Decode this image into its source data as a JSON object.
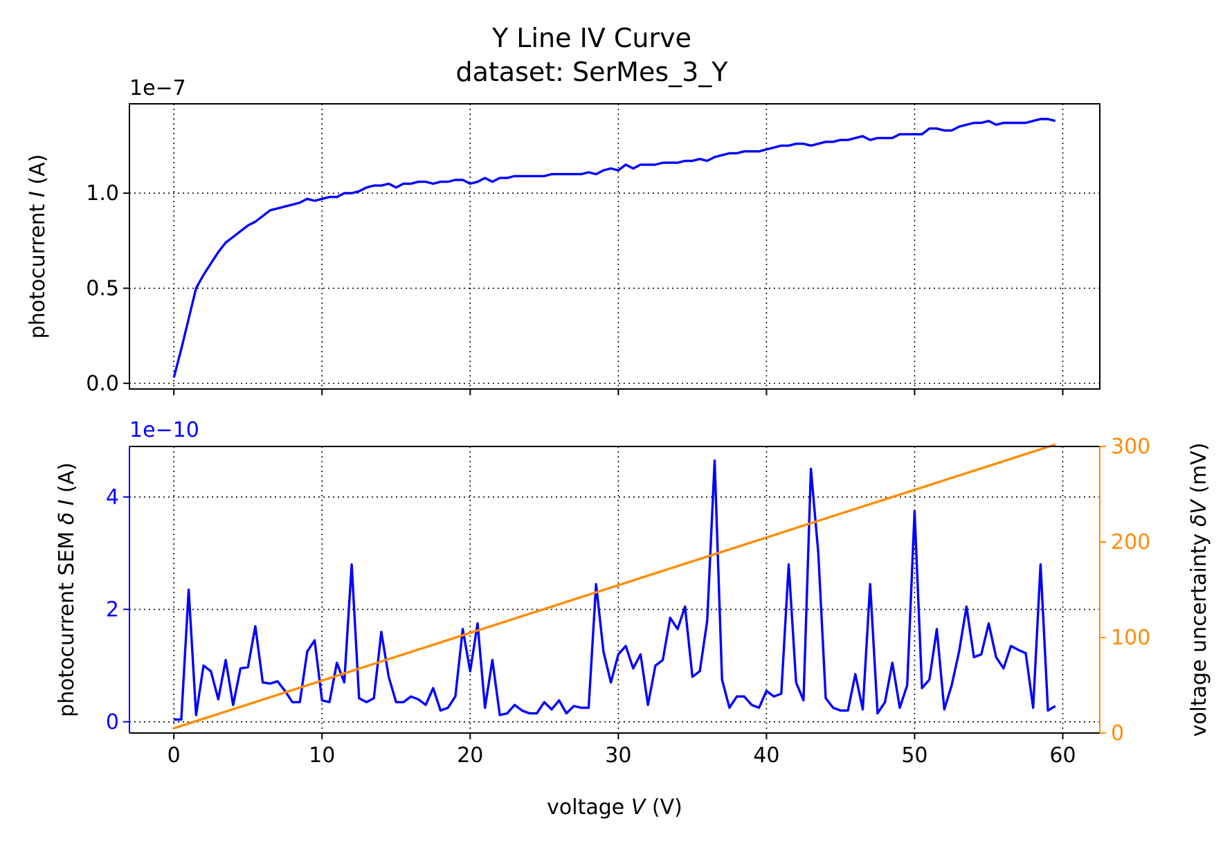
{
  "chart_data": {
    "type": "line",
    "title": "Y Line IV Curve",
    "subtitle": "dataset: SerMes_3_Y",
    "colors": {
      "current": "#0000ff",
      "sem": "#0000ff",
      "voltage_uncertainty": "#ff8c00",
      "grid": "#000000"
    },
    "grid": true,
    "xlabel": "voltage V (V)",
    "x_ticks": [
      "0",
      "10",
      "20",
      "30",
      "40",
      "50",
      "60"
    ],
    "xlim": [
      -3,
      62.5
    ],
    "subplots": [
      {
        "ylabel": "photocurrent I (A)",
        "offset_text": "1e−7",
        "y_ticks": [
          "0.0",
          "0.5",
          "1.0"
        ],
        "ylim": [
          -0.03,
          1.47
        ],
        "series": [
          {
            "x": [
              0,
              0.5,
              1,
              1.5,
              2,
              2.5,
              3,
              3.5,
              4,
              4.5,
              5,
              5.5,
              6,
              6.5,
              7,
              7.5,
              8,
              8.5,
              9,
              9.5,
              10,
              10.5,
              11,
              11.5,
              12,
              12.5,
              13,
              13.5,
              14,
              14.5,
              15,
              15.5,
              16,
              16.5,
              17,
              17.5,
              18,
              18.5,
              19,
              19.5,
              20,
              20.5,
              21,
              21.5,
              22,
              22.5,
              23,
              23.5,
              24,
              24.5,
              25,
              25.5,
              26,
              26.5,
              27,
              27.5,
              28,
              28.5,
              29,
              29.5,
              30,
              30.5,
              31,
              31.5,
              32,
              32.5,
              33,
              33.5,
              34,
              34.5,
              35,
              35.5,
              36,
              36.5,
              37,
              37.5,
              38,
              38.5,
              39,
              39.5,
              40,
              40.5,
              41,
              41.5,
              42,
              42.5,
              43,
              43.5,
              44,
              44.5,
              45,
              45.5,
              46,
              46.5,
              47,
              47.5,
              48,
              48.5,
              49,
              49.5,
              50,
              50.5,
              51,
              51.5,
              52,
              52.5,
              53,
              53.5,
              54,
              54.5,
              55,
              55.5,
              56,
              56.5,
              57,
              57.5,
              58,
              58.5,
              59,
              59.5
            ],
            "values": [
              0.03,
              0.18,
              0.34,
              0.5,
              0.57,
              0.63,
              0.69,
              0.74,
              0.77,
              0.8,
              0.83,
              0.85,
              0.88,
              0.91,
              0.92,
              0.93,
              0.94,
              0.95,
              0.97,
              0.96,
              0.97,
              0.98,
              0.98,
              1.0,
              1.0,
              1.01,
              1.03,
              1.04,
              1.04,
              1.05,
              1.03,
              1.05,
              1.05,
              1.06,
              1.06,
              1.05,
              1.06,
              1.06,
              1.07,
              1.07,
              1.05,
              1.06,
              1.08,
              1.06,
              1.08,
              1.08,
              1.09,
              1.09,
              1.09,
              1.09,
              1.09,
              1.1,
              1.1,
              1.1,
              1.1,
              1.1,
              1.11,
              1.1,
              1.12,
              1.13,
              1.12,
              1.15,
              1.13,
              1.15,
              1.15,
              1.15,
              1.16,
              1.16,
              1.16,
              1.17,
              1.17,
              1.18,
              1.17,
              1.19,
              1.2,
              1.21,
              1.21,
              1.22,
              1.22,
              1.22,
              1.23,
              1.24,
              1.25,
              1.25,
              1.26,
              1.26,
              1.25,
              1.26,
              1.27,
              1.27,
              1.28,
              1.28,
              1.29,
              1.3,
              1.28,
              1.29,
              1.29,
              1.29,
              1.31,
              1.31,
              1.31,
              1.31,
              1.34,
              1.34,
              1.33,
              1.33,
              1.35,
              1.36,
              1.37,
              1.37,
              1.38,
              1.36,
              1.37,
              1.37,
              1.37,
              1.37,
              1.38,
              1.39,
              1.39,
              1.38
            ]
          }
        ]
      },
      {
        "ylabel": "photocurrent SEM δ I (A)",
        "offset_text": "1e−10",
        "y_ticks": [
          "0",
          "2",
          "4"
        ],
        "ylim": [
          -0.2,
          4.9
        ],
        "y2label": "voltage uncertainty δV (mV)",
        "y2_ticks": [
          "0",
          "100",
          "200",
          "300"
        ],
        "y2lim": [
          0,
          300
        ],
        "series": [
          {
            "axis": "left",
            "x": [
              0,
              0.5,
              1,
              1.5,
              2,
              2.5,
              3,
              3.5,
              4,
              4.5,
              5,
              5.5,
              6,
              6.5,
              7,
              7.5,
              8,
              8.5,
              9,
              9.5,
              10,
              10.5,
              11,
              11.5,
              12,
              12.5,
              13,
              13.5,
              14,
              14.5,
              15,
              15.5,
              16,
              16.5,
              17,
              17.5,
              18,
              18.5,
              19,
              19.5,
              20,
              20.5,
              21,
              21.5,
              22,
              22.5,
              23,
              23.5,
              24,
              24.5,
              25,
              25.5,
              26,
              26.5,
              27,
              27.5,
              28,
              28.5,
              29,
              29.5,
              30,
              30.5,
              31,
              31.5,
              32,
              32.5,
              33,
              33.5,
              34,
              34.5,
              35,
              35.5,
              36,
              36.5,
              37,
              37.5,
              38,
              38.5,
              39,
              39.5,
              40,
              40.5,
              41,
              41.5,
              42,
              42.5,
              43,
              43.5,
              44,
              44.5,
              45,
              45.5,
              46,
              46.5,
              47,
              47.5,
              48,
              48.5,
              49,
              49.5,
              50,
              50.5,
              51,
              51.5,
              52,
              52.5,
              53,
              53.5,
              54,
              54.5,
              55,
              55.5,
              56,
              56.5,
              57,
              57.5,
              58,
              58.5,
              59,
              59.5
            ],
            "values": [
              0.04,
              0.04,
              2.35,
              0.12,
              1.0,
              0.9,
              0.4,
              1.1,
              0.3,
              0.95,
              0.97,
              1.7,
              0.7,
              0.68,
              0.72,
              0.55,
              0.35,
              0.35,
              1.25,
              1.45,
              0.38,
              0.35,
              1.05,
              0.7,
              2.8,
              0.42,
              0.35,
              0.42,
              1.6,
              0.8,
              0.35,
              0.35,
              0.45,
              0.4,
              0.3,
              0.6,
              0.2,
              0.25,
              0.45,
              1.65,
              0.9,
              1.75,
              0.25,
              1.1,
              0.12,
              0.15,
              0.3,
              0.2,
              0.15,
              0.15,
              0.35,
              0.22,
              0.38,
              0.15,
              0.28,
              0.25,
              0.25,
              2.45,
              1.25,
              0.7,
              1.2,
              1.35,
              0.95,
              1.2,
              0.3,
              1.0,
              1.1,
              1.85,
              1.65,
              2.05,
              0.8,
              0.9,
              1.8,
              4.65,
              0.75,
              0.25,
              0.45,
              0.45,
              0.3,
              0.25,
              0.55,
              0.45,
              0.5,
              2.8,
              0.7,
              0.38,
              4.5,
              3.0,
              0.42,
              0.25,
              0.2,
              0.2,
              0.85,
              0.22,
              2.45,
              0.15,
              0.35,
              1.05,
              0.25,
              0.65,
              3.75,
              0.6,
              0.75,
              1.65,
              0.22,
              0.65,
              1.25,
              2.05,
              1.15,
              1.2,
              1.75,
              1.15,
              0.95,
              1.35,
              1.28,
              1.22,
              0.25,
              2.8,
              0.2,
              0.28
            ]
          },
          {
            "axis": "right",
            "x": [
              0,
              59.5
            ],
            "values": [
              5,
              302
            ]
          }
        ]
      }
    ]
  }
}
